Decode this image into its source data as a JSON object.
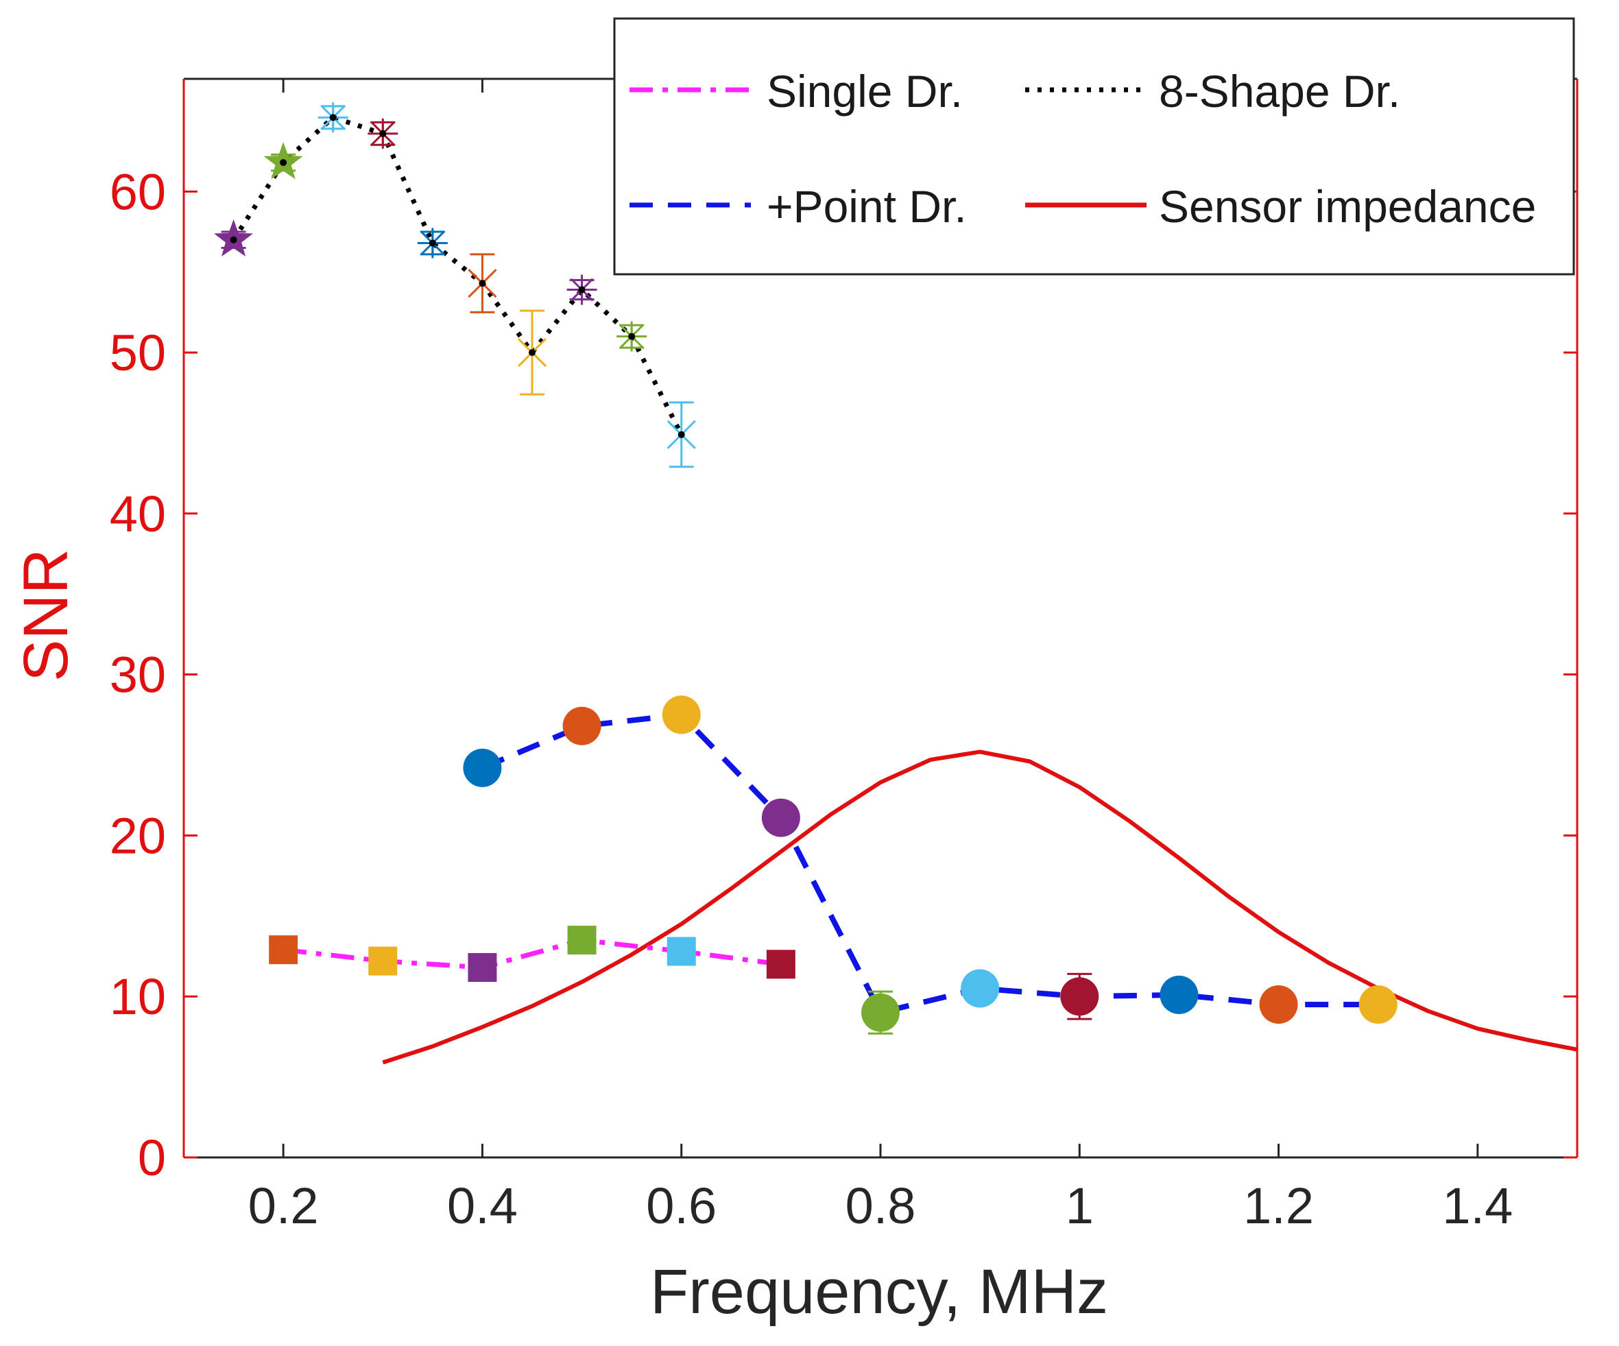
{
  "chart_data": {
    "type": "line",
    "xlabel": "Frequency, MHz",
    "ylabel": "SNR",
    "xlim": [
      0.1,
      1.5
    ],
    "ylim": [
      0,
      67
    ],
    "xticks": [
      0.2,
      0.4,
      0.6,
      0.8,
      1,
      1.2,
      1.4
    ],
    "xtick_labels": [
      "0.2",
      "0.4",
      "0.6",
      "0.8",
      "1",
      "1.2",
      "1.4"
    ],
    "yticks": [
      0,
      10,
      20,
      30,
      40,
      50,
      60
    ],
    "ytick_labels": [
      "0",
      "10",
      "20",
      "30",
      "40",
      "50",
      "60"
    ],
    "grid": false,
    "legend_position": "top-right",
    "legend_columns": 2,
    "series": [
      {
        "name": "Single Dr.",
        "line_style": "dash-dot",
        "line_color": "#ff22ff",
        "marker": "square",
        "x": [
          0.2,
          0.3,
          0.4,
          0.5,
          0.6,
          0.7
        ],
        "y": [
          12.9,
          12.2,
          11.8,
          13.5,
          12.8,
          12.0
        ],
        "err": [
          0,
          0,
          0,
          0.5,
          0,
          0
        ],
        "marker_colors": [
          "#d95319",
          "#edb120",
          "#7e2f8e",
          "#77ac30",
          "#4dbeee",
          "#a2142f"
        ]
      },
      {
        "name": "8-Shape Dr.",
        "line_style": "dotted",
        "line_color": "#000000",
        "marker": "mixed",
        "x": [
          0.15,
          0.2,
          0.25,
          0.3,
          0.35,
          0.4,
          0.45,
          0.5,
          0.55,
          0.6
        ],
        "y": [
          57.0,
          61.8,
          64.6,
          63.6,
          56.8,
          54.3,
          50.0,
          53.9,
          51.0,
          44.9
        ],
        "err": [
          0.5,
          0.5,
          0.7,
          0.7,
          0.7,
          1.8,
          2.6,
          0.6,
          0.7,
          2.0
        ],
        "markers": [
          "star",
          "star",
          "asterisk",
          "asterisk",
          "asterisk",
          "x",
          "x",
          "asterisk",
          "asterisk",
          "x"
        ],
        "marker_colors": [
          "#7e2f8e",
          "#77ac30",
          "#4dbeee",
          "#a2142f",
          "#0072bd",
          "#d95319",
          "#edb120",
          "#7e2f8e",
          "#77ac30",
          "#4dbeee"
        ]
      },
      {
        "name": "+Point Dr.",
        "line_style": "dashed",
        "line_color": "#0f14e6",
        "marker": "circle",
        "x": [
          0.4,
          0.5,
          0.6,
          0.7,
          0.8,
          0.9,
          1.0,
          1.1,
          1.2,
          1.3
        ],
        "y": [
          24.2,
          26.8,
          27.5,
          21.1,
          9.0,
          10.5,
          10.0,
          10.1,
          9.5,
          9.5
        ],
        "err": [
          0,
          0,
          0,
          0,
          1.3,
          0,
          1.4,
          0,
          0,
          0
        ],
        "marker_colors": [
          "#0072bd",
          "#d95319",
          "#edb120",
          "#7e2f8e",
          "#77ac30",
          "#4dbeee",
          "#a2142f",
          "#0072bd",
          "#d95319",
          "#edb120"
        ]
      },
      {
        "name": "Sensor impedance",
        "line_style": "solid",
        "line_color": "#e01010",
        "marker": "none",
        "x": [
          0.3,
          0.35,
          0.4,
          0.45,
          0.5,
          0.55,
          0.6,
          0.65,
          0.7,
          0.75,
          0.8,
          0.85,
          0.9,
          0.95,
          1.0,
          1.05,
          1.1,
          1.15,
          1.2,
          1.25,
          1.3,
          1.35,
          1.4,
          1.45,
          1.5
        ],
        "y": [
          5.9,
          6.9,
          8.1,
          9.4,
          10.9,
          12.6,
          14.5,
          16.7,
          19.0,
          21.3,
          23.3,
          24.7,
          25.2,
          24.6,
          23.0,
          20.9,
          18.6,
          16.2,
          14.0,
          12.1,
          10.5,
          9.1,
          8.0,
          7.3,
          6.7
        ]
      }
    ]
  }
}
